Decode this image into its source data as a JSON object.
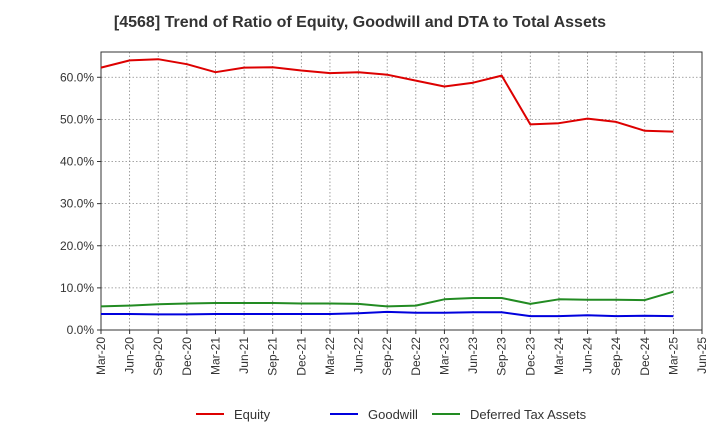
{
  "chart_data": {
    "type": "line",
    "title": "[4568]  Trend of Ratio of Equity, Goodwill and DTA to Total Assets",
    "xlabel": "",
    "ylabel": "",
    "x": [
      "Mar-20",
      "Jun-20",
      "Sep-20",
      "Dec-20",
      "Mar-21",
      "Jun-21",
      "Sep-21",
      "Dec-21",
      "Mar-22",
      "Jun-22",
      "Sep-22",
      "Dec-22",
      "Mar-23",
      "Jun-23",
      "Sep-23",
      "Dec-23",
      "Mar-24",
      "Jun-24",
      "Sep-24",
      "Dec-24",
      "Mar-25"
    ],
    "x_tick_labels": [
      "Mar-20",
      "Jun-20",
      "Sep-20",
      "Dec-20",
      "Mar-21",
      "Jun-21",
      "Sep-21",
      "Dec-21",
      "Mar-22",
      "Jun-22",
      "Sep-22",
      "Dec-22",
      "Mar-23",
      "Jun-23",
      "Sep-23",
      "Dec-23",
      "Mar-24",
      "Jun-24",
      "Sep-24",
      "Dec-24",
      "Mar-25",
      "Jun-25"
    ],
    "y_tick_labels": [
      "0.0%",
      "10.0%",
      "20.0%",
      "30.0%",
      "40.0%",
      "50.0%",
      "60.0%"
    ],
    "ylim": [
      0,
      66
    ],
    "y_unit": "%",
    "grid": true,
    "legend_position": "bottom",
    "series": [
      {
        "name": "Equity",
        "color": "#dd0000",
        "values": [
          62.3,
          64.0,
          64.3,
          63.1,
          61.2,
          62.3,
          62.4,
          61.6,
          61.0,
          61.2,
          60.6,
          59.2,
          57.8,
          58.7,
          60.4,
          48.8,
          49.1,
          50.2,
          49.4,
          47.3,
          47.1
        ]
      },
      {
        "name": "Goodwill",
        "color": "#0000dd",
        "values": [
          3.8,
          3.8,
          3.7,
          3.7,
          3.8,
          3.8,
          3.8,
          3.8,
          3.8,
          4.0,
          4.3,
          4.1,
          4.1,
          4.2,
          4.2,
          3.3,
          3.3,
          3.5,
          3.3,
          3.4,
          3.3
        ]
      },
      {
        "name": "Deferred Tax Assets",
        "color": "#228b22",
        "values": [
          5.6,
          5.8,
          6.1,
          6.3,
          6.4,
          6.4,
          6.4,
          6.3,
          6.3,
          6.2,
          5.6,
          5.8,
          7.3,
          7.6,
          7.6,
          6.2,
          7.3,
          7.2,
          7.2,
          7.1,
          9.1
        ]
      }
    ]
  }
}
